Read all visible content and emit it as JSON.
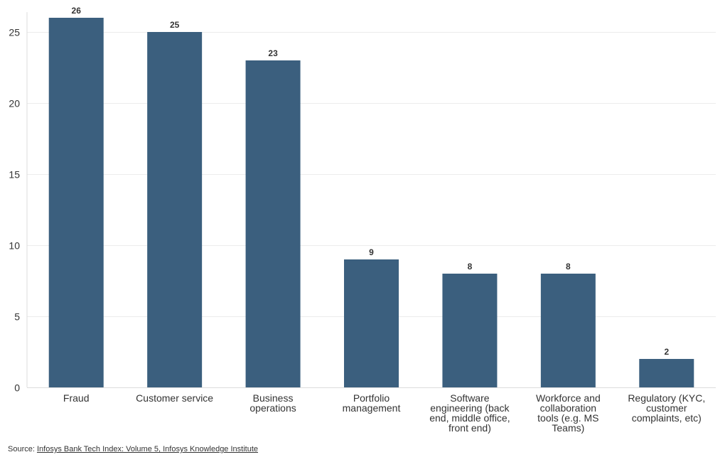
{
  "chart_data": {
    "type": "bar",
    "categories": [
      [
        "Fraud"
      ],
      [
        "Customer service"
      ],
      [
        "Business",
        "operations"
      ],
      [
        "Portfolio",
        "management"
      ],
      [
        "Software",
        "engineering (back",
        "end, middle office,",
        "front end)"
      ],
      [
        "Workforce and",
        "collaboration",
        "tools (e.g. MS",
        "Teams)"
      ],
      [
        "Regulatory (KYC,",
        "customer",
        "complaints, etc)"
      ]
    ],
    "values": [
      26,
      25,
      23,
      9,
      8,
      8,
      2
    ],
    "data_labels": [
      "26",
      "25",
      "23",
      "9",
      "8",
      "8",
      "2"
    ],
    "yticks": [
      0,
      5,
      10,
      15,
      20,
      25
    ],
    "ylim": [
      0,
      27
    ],
    "grid": true,
    "bar_color": "#3b5f7e",
    "title": "",
    "xlabel": "",
    "ylabel": ""
  },
  "source": {
    "prefix": "Source: ",
    "link_text": "Infosys Bank Tech Index: Volume 5, Infosys Knowledge Institute"
  }
}
